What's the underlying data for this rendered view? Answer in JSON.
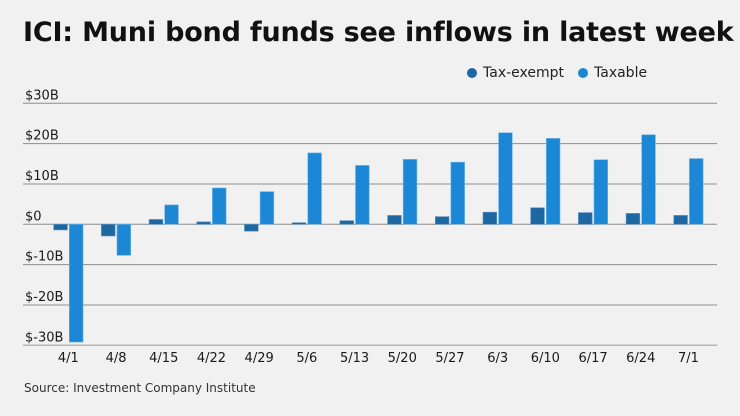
{
  "title": "ICI: Muni bond funds see inflows in latest week",
  "source": "Source: Investment Company Institute",
  "legend": [
    {
      "label": "Tax-exempt",
      "color": "#1d67a3"
    },
    {
      "label": "Taxable",
      "color": "#1c87d5"
    }
  ],
  "chart_data": {
    "type": "bar",
    "title": "ICI: Muni bond funds see inflows in latest week",
    "xlabel": "",
    "ylabel": "",
    "ylim": [
      -30,
      30
    ],
    "yticks": [
      30,
      20,
      10,
      0,
      -10,
      -20,
      -30
    ],
    "ytick_labels": [
      "$30B",
      "$20B",
      "$10B",
      "$0",
      "$-10B",
      "$-20B",
      "$-30B"
    ],
    "grid": true,
    "legend_position": "top-right",
    "units": "billions USD",
    "categories": [
      "4/1",
      "4/8",
      "4/15",
      "4/22",
      "4/29",
      "5/6",
      "5/13",
      "5/20",
      "5/27",
      "6/3",
      "6/10",
      "6/17",
      "6/24",
      "7/1"
    ],
    "series": [
      {
        "name": "Tax-exempt",
        "color": "#1d67a3",
        "values": [
          -1.4,
          -2.9,
          1.2,
          0.6,
          -1.7,
          0.4,
          0.9,
          2.2,
          1.9,
          3.0,
          4.1,
          2.9,
          2.7,
          2.2
        ]
      },
      {
        "name": "Taxable",
        "color": "#1c87d5",
        "values": [
          -29.2,
          -7.7,
          4.8,
          9.0,
          8.1,
          17.7,
          14.6,
          16.1,
          15.4,
          22.7,
          21.3,
          16.0,
          22.2,
          16.3
        ]
      }
    ]
  }
}
